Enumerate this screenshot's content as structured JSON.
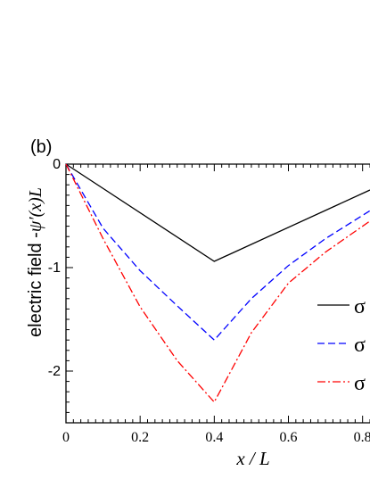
{
  "panel_label": "(b)",
  "chart_data": {
    "type": "line",
    "title": "",
    "xlabel": "x / L",
    "ylabel_text": "electric field  -",
    "ylabel_math": "ψ′(x)L",
    "xlim": [
      0,
      0.82
    ],
    "ylim": [
      -2.5,
      0
    ],
    "x_ticks": [
      0,
      0.2,
      0.4,
      0.6,
      0.8
    ],
    "x_tick_labels": [
      "0",
      "0.2",
      "0.4",
      "0.6",
      "0.8"
    ],
    "y_ticks": [
      0,
      -1,
      -2
    ],
    "y_tick_labels": [
      "0",
      "-1",
      "-2"
    ],
    "grid": false,
    "legend_position": "right",
    "series": [
      {
        "name": "σ",
        "color": "#000000",
        "dash": "solid",
        "x": [
          0,
          0.4,
          0.82
        ],
        "y": [
          0,
          -0.94,
          -0.25
        ]
      },
      {
        "name": "σ",
        "color": "#0000ff",
        "dash": "dashed",
        "x": [
          0,
          0.1,
          0.2,
          0.3,
          0.4,
          0.5,
          0.6,
          0.7,
          0.82
        ],
        "y": [
          0,
          -0.62,
          -1.03,
          -1.37,
          -1.7,
          -1.3,
          -0.98,
          -0.72,
          -0.45
        ]
      },
      {
        "name": "σ",
        "color": "#ff0000",
        "dash": "dashdot",
        "x": [
          0,
          0.1,
          0.2,
          0.3,
          0.4,
          0.5,
          0.6,
          0.7,
          0.82
        ],
        "y": [
          0,
          -0.72,
          -1.38,
          -1.9,
          -2.3,
          -1.63,
          -1.15,
          -0.85,
          -0.55
        ]
      }
    ]
  }
}
